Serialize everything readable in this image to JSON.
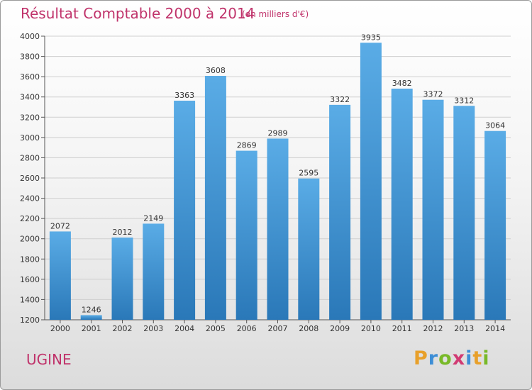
{
  "title": "Résultat Comptable 2000 à 2014",
  "subtitle": "(en milliers d'€)",
  "commune": "UGINE",
  "brand": {
    "letters": [
      "P",
      "r",
      "o",
      "x",
      "i",
      "t",
      "i"
    ],
    "colors": [
      "#e8a02a",
      "#3d8ed6",
      "#78b928",
      "#d13a73",
      "#3d8ed6",
      "#e8a02a",
      "#78b928"
    ]
  },
  "colors": {
    "bar_top": "#5aace6",
    "bar_bottom": "#2a78b8",
    "title": "#c0336b",
    "grid": "#cfcfcf"
  },
  "chart_data": {
    "type": "bar",
    "categories": [
      "2000",
      "2001",
      "2002",
      "2003",
      "2004",
      "2005",
      "2006",
      "2007",
      "2008",
      "2009",
      "2010",
      "2011",
      "2012",
      "2013",
      "2014"
    ],
    "values": [
      2072,
      1246,
      2012,
      2149,
      3363,
      3608,
      2869,
      2989,
      2595,
      3322,
      3935,
      3482,
      3372,
      3312,
      3064
    ],
    "ylim": [
      1200,
      4000
    ],
    "yticks": [
      1200,
      1400,
      1600,
      1800,
      2000,
      2200,
      2400,
      2600,
      2800,
      3000,
      3200,
      3400,
      3600,
      3800,
      4000
    ],
    "grid": true,
    "data_labels": true
  }
}
